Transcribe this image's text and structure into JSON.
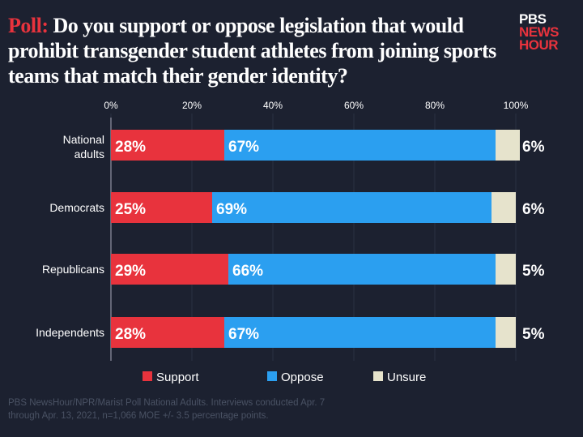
{
  "title": {
    "prefix": "Poll:",
    "text": "Do you support or oppose legislation that would prohibit transgender student athletes from joining sports teams that match their gender identity?"
  },
  "logo": {
    "line1": "PBS",
    "line2": "NEWS",
    "line3": "HOUR"
  },
  "footer": {
    "line1": "PBS NewsHour/NPR/Marist Poll National Adults. Interviews conducted Apr. 7",
    "line2": "through Apr. 13, 2021, n=1,066 MOE +/- 3.5 percentage points."
  },
  "chart_data": {
    "type": "bar",
    "orientation": "horizontal",
    "stacked": true,
    "categories": [
      "National adults",
      "Democrats",
      "Republicans",
      "Independents"
    ],
    "series": [
      {
        "name": "Support",
        "color": "#e8333d",
        "values": [
          28,
          25,
          29,
          28
        ]
      },
      {
        "name": "Oppose",
        "color": "#2b9ff0",
        "values": [
          67,
          69,
          66,
          67
        ]
      },
      {
        "name": "Unsure",
        "color": "#e6e3cc",
        "values": [
          6,
          6,
          5,
          5
        ]
      }
    ],
    "xticks": [
      "0%",
      "20%",
      "40%",
      "60%",
      "80%",
      "100%"
    ],
    "xlim": [
      0,
      100
    ],
    "grid": true,
    "legend": "bottom"
  }
}
